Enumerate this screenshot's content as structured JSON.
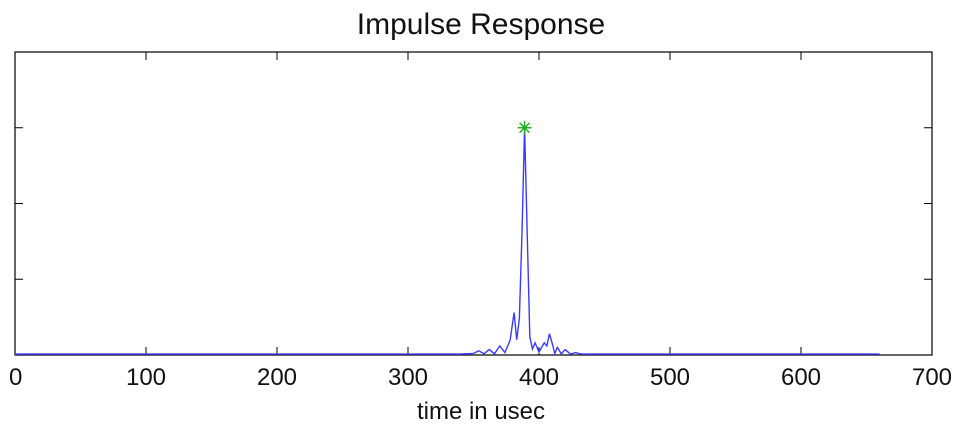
{
  "chart_data": {
    "type": "line",
    "title": "Impulse Response",
    "xlabel": "time in usec",
    "ylabel": "",
    "xlim": [
      0,
      700
    ],
    "ylim": [
      0,
      1.0
    ],
    "xticks": [
      0,
      100,
      200,
      300,
      400,
      500,
      600,
      700
    ],
    "yticks": [
      0.25,
      0.5,
      0.75
    ],
    "ytick_labels_shown": false,
    "grid": false,
    "series": [
      {
        "color": "#3a3aff",
        "x": [
          0,
          340,
          350,
          354,
          358,
          362,
          366,
          370,
          374,
          378,
          381,
          383,
          385,
          387,
          389,
          391,
          393,
          395,
          397,
          400,
          404,
          406,
          408,
          410,
          412,
          414,
          417,
          420,
          424,
          428,
          432,
          440,
          450,
          660
        ],
        "y": [
          0.003,
          0.003,
          0.005,
          0.014,
          0.004,
          0.018,
          0.004,
          0.03,
          0.008,
          0.05,
          0.14,
          0.05,
          0.12,
          0.4,
          0.75,
          0.4,
          0.06,
          0.02,
          0.04,
          0.01,
          0.04,
          0.03,
          0.07,
          0.04,
          0.005,
          0.025,
          0.004,
          0.018,
          0.003,
          0.008,
          0.003,
          0.003,
          0.003,
          0.003
        ]
      }
    ],
    "marker": {
      "x": 389,
      "y": 0.75,
      "color": "#22aa22",
      "symbol": "star"
    }
  }
}
